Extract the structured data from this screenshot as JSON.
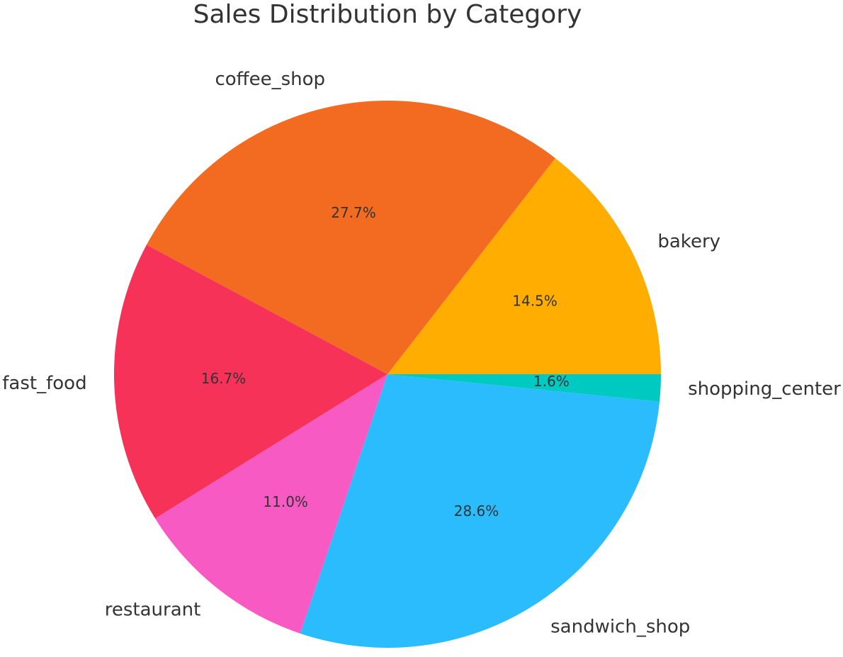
{
  "chart_data": {
    "type": "pie",
    "title": "Sales Distribution by Category",
    "categories": [
      "bakery",
      "coffee_shop",
      "fast_food",
      "restaurant",
      "sandwich_shop",
      "shopping_center"
    ],
    "values": [
      14.5,
      27.7,
      16.7,
      11.0,
      28.6,
      1.6
    ],
    "value_labels": [
      "14.5%",
      "27.7%",
      "16.7%",
      "11.0%",
      "28.6%",
      "1.6%"
    ],
    "colors": [
      "#FFAD00",
      "#F26B21",
      "#F73259",
      "#F85AC4",
      "#2ABCFD",
      "#00C9C1"
    ]
  }
}
